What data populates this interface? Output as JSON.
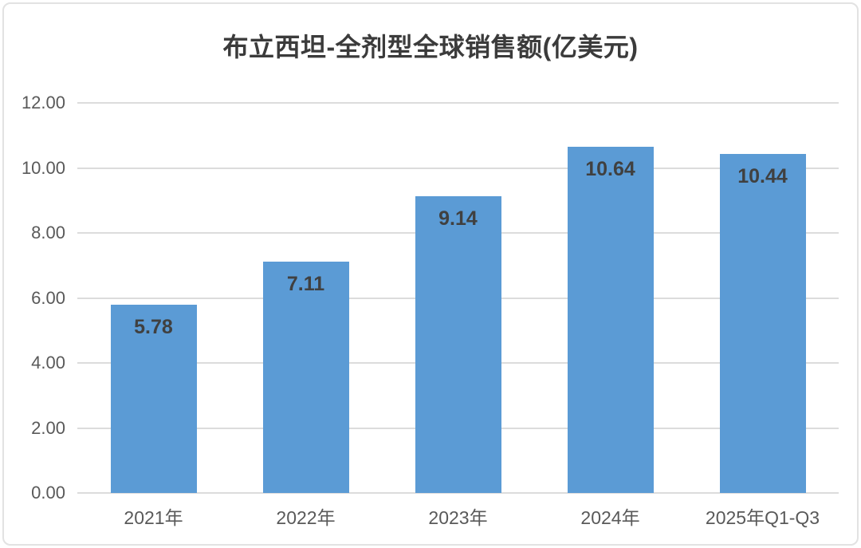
{
  "chart_data": {
    "type": "bar",
    "title": "布立西坦-全剂型全球销售额(亿美元)",
    "categories": [
      "2021年",
      "2022年",
      "2023年",
      "2024年",
      "2025年Q1-Q3"
    ],
    "values": [
      5.78,
      7.11,
      9.14,
      10.64,
      10.44
    ],
    "value_labels": [
      "5.78",
      "7.11",
      "9.14",
      "10.64",
      "10.44"
    ],
    "xlabel": "",
    "ylabel": "",
    "ylim": [
      0,
      12
    ],
    "ytick_step": 2,
    "ytick_labels": [
      "0.00",
      "2.00",
      "4.00",
      "6.00",
      "8.00",
      "10.00",
      "12.00"
    ],
    "grid": true,
    "legend_position": "none",
    "bar_color": "#5b9bd5",
    "gridline_color": "#dcdcdc",
    "title_color": "#3b3b3b",
    "data_label_color": "#404040",
    "axis_label_color": "#595959"
  }
}
